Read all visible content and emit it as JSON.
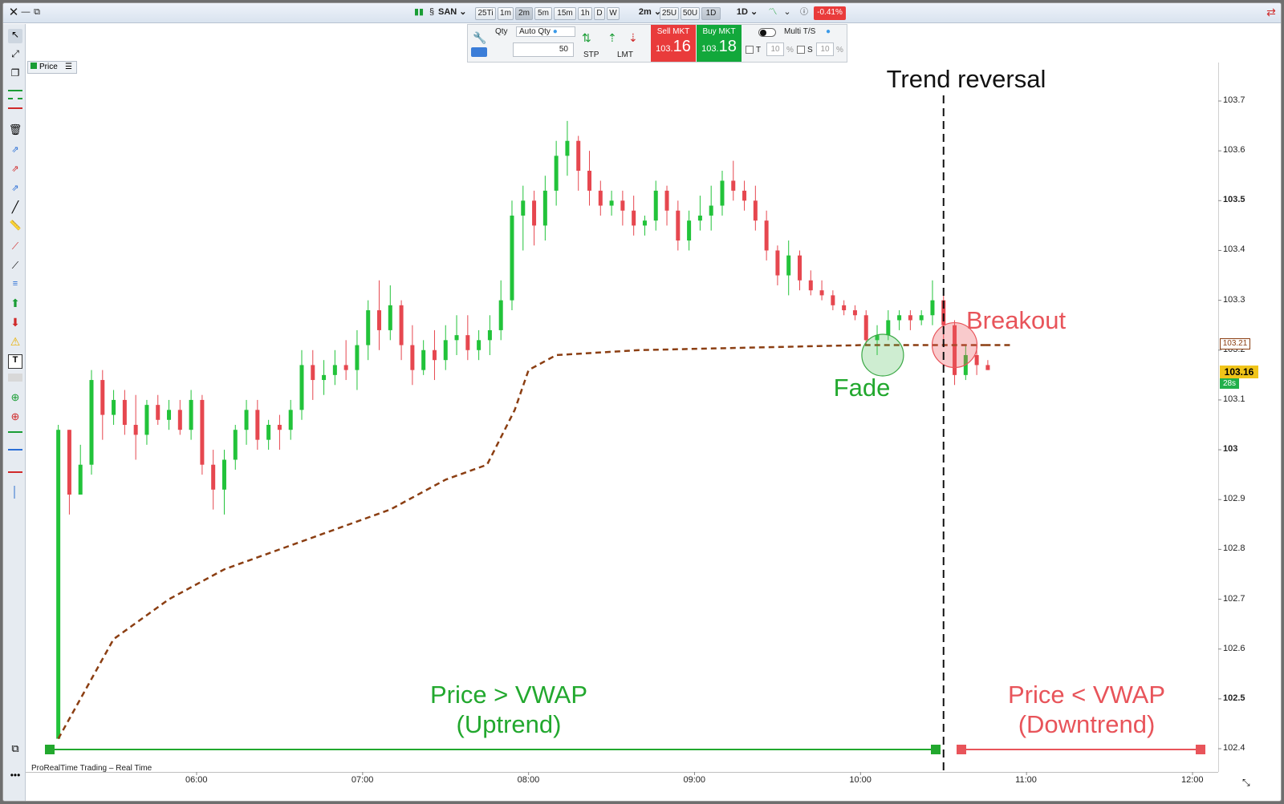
{
  "toolbar": {
    "symbol": "SAN",
    "timeframes": [
      "25Ti",
      "1m",
      "2m",
      "5m",
      "15m",
      "1h",
      "D",
      "W"
    ],
    "active_timeframe": "2m",
    "interval": "2m",
    "units": [
      "25U",
      "50U",
      "1D"
    ],
    "period": "1D",
    "change_percent": "-0.41%",
    "colors": {
      "change_badge": "#e93b3b"
    }
  },
  "order_panel": {
    "qty_label": "Qty",
    "auto_qty_label": "Auto Qty",
    "qty_value": "50",
    "stp_label": "STP",
    "lmt_label": "LMT",
    "sell_label": "Sell MKT",
    "sell_price_prefix": "103.",
    "sell_price_suffix": "16",
    "buy_label": "Buy MKT",
    "buy_price_prefix": "103.",
    "buy_price_suffix": "18",
    "multi_ts_label": "Multi T/S",
    "t_label": "T",
    "t_value": "10",
    "s_label": "S",
    "s_value": "10",
    "percent": "%",
    "colors": {
      "sell": "#e93b3b",
      "buy": "#12a83b"
    }
  },
  "chart_tab": {
    "label": "Price"
  },
  "footer": {
    "label": "ProRealTime Trading – Real Time"
  },
  "y_axis": {
    "ticks": [
      "103.7",
      "103.6",
      "103.5",
      "103.4",
      "103.3",
      "103.2",
      "103.1",
      "103",
      "102.9",
      "102.8",
      "102.7",
      "102.6",
      "102.5",
      "102.4"
    ],
    "vwap_badge": "103.21",
    "price_badge": "103.16",
    "countdown": "28s"
  },
  "x_axis": {
    "ticks": [
      "06:00",
      "07:00",
      "08:00",
      "09:00",
      "10:00",
      "11:00",
      "12:00"
    ]
  },
  "annotations": {
    "trend_reversal": "Trend reversal",
    "breakout": "Breakout",
    "fade": "Fade",
    "uptrend_line1": "Price > VWAP",
    "uptrend_line2": "(Uptrend)",
    "downtrend_line1": "Price < VWAP",
    "downtrend_line2": "(Downtrend)",
    "colors": {
      "green": "#22a82e",
      "red": "#e8545a",
      "vwap": "#8b3e12"
    }
  },
  "chart_data": {
    "type": "candlestick",
    "title": "",
    "xlabel": "",
    "ylabel": "",
    "ylim": [
      102.35,
      103.77
    ],
    "x_range": [
      "05:05",
      "12:05"
    ],
    "candles_ohlc": [
      [
        "05:10",
        102.42,
        103.05,
        102.42,
        103.04
      ],
      [
        "05:14",
        103.04,
        103.04,
        102.87,
        102.91
      ],
      [
        "05:18",
        102.91,
        103.01,
        102.95,
        102.97
      ],
      [
        "05:22",
        102.97,
        103.16,
        102.95,
        103.14
      ],
      [
        "05:26",
        103.14,
        103.16,
        103.02,
        103.07
      ],
      [
        "05:30",
        103.07,
        103.12,
        103.05,
        103.1
      ],
      [
        "05:34",
        103.1,
        103.12,
        103.03,
        103.05
      ],
      [
        "05:38",
        103.05,
        103.11,
        102.98,
        103.03
      ],
      [
        "05:42",
        103.03,
        103.1,
        103.01,
        103.09
      ],
      [
        "05:46",
        103.09,
        103.11,
        103.05,
        103.06
      ],
      [
        "05:50",
        103.06,
        103.1,
        103.04,
        103.08
      ],
      [
        "05:54",
        103.08,
        103.1,
        103.03,
        103.04
      ],
      [
        "05:58",
        103.04,
        103.12,
        103.02,
        103.1
      ],
      [
        "06:02",
        103.1,
        103.11,
        102.95,
        102.97
      ],
      [
        "06:06",
        102.97,
        103.0,
        102.88,
        102.92
      ],
      [
        "06:10",
        102.92,
        103.0,
        102.87,
        102.98
      ],
      [
        "06:14",
        102.98,
        103.05,
        102.96,
        103.04
      ],
      [
        "06:18",
        103.04,
        103.1,
        103.01,
        103.08
      ],
      [
        "06:22",
        103.08,
        103.1,
        103.0,
        103.02
      ],
      [
        "06:26",
        103.02,
        103.06,
        103.0,
        103.05
      ],
      [
        "06:30",
        103.05,
        103.07,
        103.0,
        103.04
      ],
      [
        "06:34",
        103.04,
        103.1,
        103.02,
        103.08
      ],
      [
        "06:38",
        103.08,
        103.2,
        103.06,
        103.17
      ],
      [
        "06:42",
        103.17,
        103.2,
        103.1,
        103.14
      ],
      [
        "06:46",
        103.14,
        103.18,
        103.11,
        103.15
      ],
      [
        "06:50",
        103.15,
        103.2,
        103.13,
        103.17
      ],
      [
        "06:54",
        103.17,
        103.22,
        103.14,
        103.16
      ],
      [
        "06:58",
        103.16,
        103.24,
        103.12,
        103.21
      ],
      [
        "07:02",
        103.21,
        103.3,
        103.18,
        103.28
      ],
      [
        "07:06",
        103.28,
        103.34,
        103.2,
        103.24
      ],
      [
        "07:10",
        103.24,
        103.33,
        103.22,
        103.29
      ],
      [
        "07:14",
        103.29,
        103.3,
        103.18,
        103.21
      ],
      [
        "07:18",
        103.21,
        103.25,
        103.13,
        103.16
      ],
      [
        "07:22",
        103.16,
        103.22,
        103.15,
        103.2
      ],
      [
        "07:26",
        103.2,
        103.24,
        103.14,
        103.18
      ],
      [
        "07:30",
        103.18,
        103.25,
        103.16,
        103.22
      ],
      [
        "07:34",
        103.22,
        103.27,
        103.19,
        103.23
      ],
      [
        "07:38",
        103.23,
        103.27,
        103.18,
        103.2
      ],
      [
        "07:42",
        103.2,
        103.24,
        103.18,
        103.22
      ],
      [
        "07:46",
        103.22,
        103.27,
        103.19,
        103.24
      ],
      [
        "07:50",
        103.24,
        103.34,
        103.22,
        103.3
      ],
      [
        "07:54",
        103.3,
        103.5,
        103.28,
        103.47
      ],
      [
        "07:58",
        103.47,
        103.53,
        103.4,
        103.5
      ],
      [
        "08:02",
        103.5,
        103.52,
        103.41,
        103.45
      ],
      [
        "08:06",
        103.45,
        103.55,
        103.42,
        103.52
      ],
      [
        "08:10",
        103.52,
        103.62,
        103.49,
        103.59
      ],
      [
        "08:14",
        103.59,
        103.66,
        103.55,
        103.62
      ],
      [
        "08:18",
        103.62,
        103.63,
        103.52,
        103.56
      ],
      [
        "08:22",
        103.56,
        103.6,
        103.49,
        103.52
      ],
      [
        "08:26",
        103.52,
        103.54,
        103.47,
        103.49
      ],
      [
        "08:30",
        103.49,
        103.52,
        103.47,
        103.5
      ],
      [
        "08:34",
        103.5,
        103.52,
        103.45,
        103.48
      ],
      [
        "08:38",
        103.48,
        103.51,
        103.43,
        103.45
      ],
      [
        "08:42",
        103.45,
        103.47,
        103.43,
        103.46
      ],
      [
        "08:46",
        103.46,
        103.54,
        103.44,
        103.52
      ],
      [
        "08:50",
        103.52,
        103.53,
        103.45,
        103.48
      ],
      [
        "08:54",
        103.48,
        103.5,
        103.4,
        103.42
      ],
      [
        "08:58",
        103.42,
        103.48,
        103.4,
        103.46
      ],
      [
        "09:02",
        103.46,
        103.51,
        103.44,
        103.47
      ],
      [
        "09:06",
        103.47,
        103.53,
        103.44,
        103.49
      ],
      [
        "09:10",
        103.49,
        103.56,
        103.47,
        103.54
      ],
      [
        "09:14",
        103.54,
        103.58,
        103.5,
        103.52
      ],
      [
        "09:18",
        103.52,
        103.54,
        103.48,
        103.5
      ],
      [
        "09:22",
        103.5,
        103.53,
        103.44,
        103.46
      ],
      [
        "09:26",
        103.46,
        103.48,
        103.38,
        103.4
      ],
      [
        "09:30",
        103.4,
        103.41,
        103.33,
        103.35
      ],
      [
        "09:34",
        103.35,
        103.42,
        103.31,
        103.39
      ],
      [
        "09:38",
        103.39,
        103.4,
        103.32,
        103.34
      ],
      [
        "09:42",
        103.34,
        103.36,
        103.31,
        103.32
      ],
      [
        "09:46",
        103.32,
        103.34,
        103.3,
        103.31
      ],
      [
        "09:50",
        103.31,
        103.32,
        103.28,
        103.29
      ],
      [
        "09:54",
        103.29,
        103.3,
        103.27,
        103.28
      ],
      [
        "09:58",
        103.28,
        103.29,
        103.26,
        103.27
      ],
      [
        "10:02",
        103.27,
        103.28,
        103.21,
        103.22
      ],
      [
        "10:06",
        103.22,
        103.25,
        103.19,
        103.23
      ],
      [
        "10:10",
        103.23,
        103.28,
        103.22,
        103.26
      ],
      [
        "10:14",
        103.26,
        103.28,
        103.24,
        103.27
      ],
      [
        "10:18",
        103.27,
        103.28,
        103.24,
        103.26
      ],
      [
        "10:22",
        103.26,
        103.28,
        103.25,
        103.27
      ],
      [
        "10:26",
        103.27,
        103.34,
        103.25,
        103.3
      ],
      [
        "10:30",
        103.3,
        103.31,
        103.22,
        103.25
      ],
      [
        "10:34",
        103.25,
        103.26,
        103.13,
        103.15
      ],
      [
        "10:38",
        103.15,
        103.21,
        103.14,
        103.19
      ],
      [
        "10:42",
        103.19,
        103.21,
        103.15,
        103.17
      ],
      [
        "10:46",
        103.17,
        103.18,
        103.16,
        103.16
      ]
    ],
    "vwap_series": {
      "style": "dashed",
      "points": [
        [
          "05:10",
          102.42
        ],
        [
          "05:30",
          102.62
        ],
        [
          "05:50",
          102.7
        ],
        [
          "06:10",
          102.76
        ],
        [
          "06:30",
          102.8
        ],
        [
          "06:50",
          102.84
        ],
        [
          "07:10",
          102.88
        ],
        [
          "07:30",
          102.94
        ],
        [
          "07:45",
          102.97
        ],
        [
          "07:55",
          103.08
        ],
        [
          "08:00",
          103.16
        ],
        [
          "08:10",
          103.19
        ],
        [
          "08:40",
          103.2
        ],
        [
          "09:20",
          103.205
        ],
        [
          "10:00",
          103.21
        ],
        [
          "10:45",
          103.21
        ]
      ]
    },
    "markers": [
      {
        "label": "Fade",
        "time": "10:08",
        "price": 103.19
      },
      {
        "label": "Breakout",
        "time": "10:34",
        "price": 103.21
      },
      {
        "label": "Trend reversal",
        "time": "10:30"
      }
    ],
    "grid": false
  }
}
